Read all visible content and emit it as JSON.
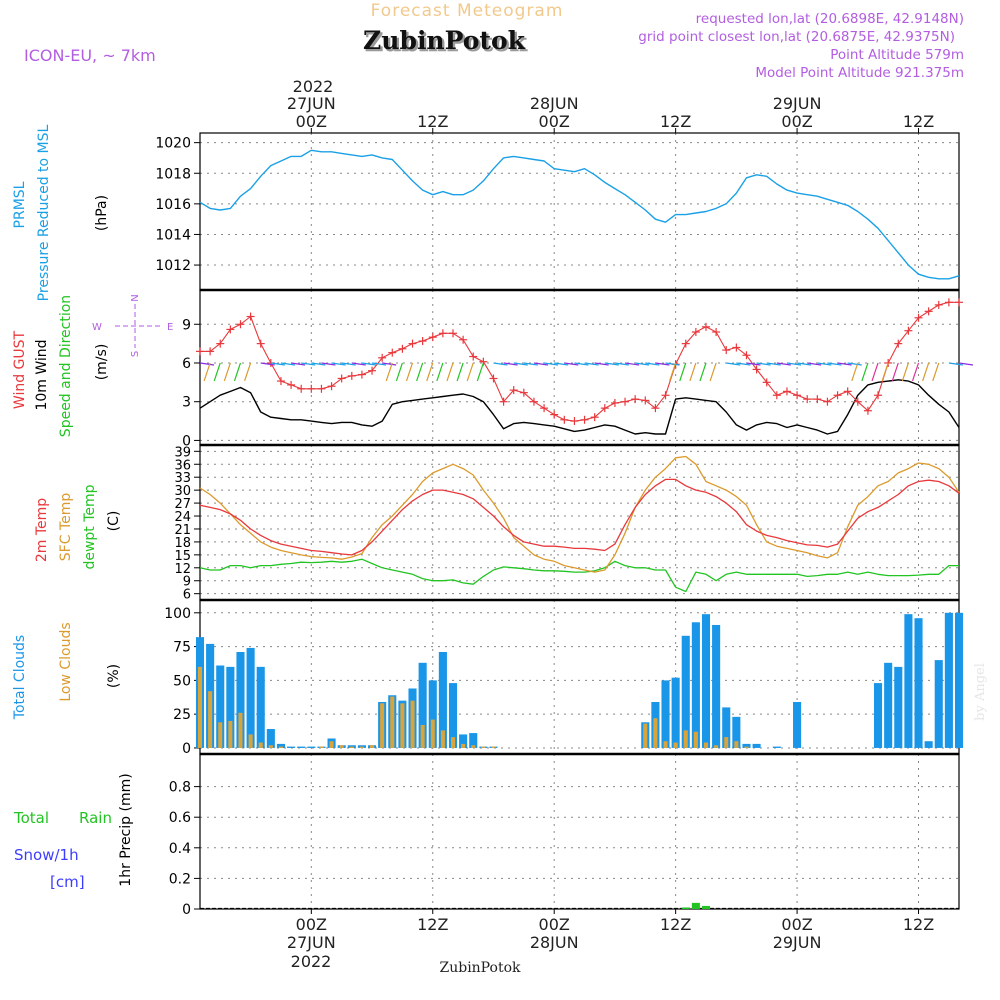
{
  "header": {
    "product": "Forecast Meteogram",
    "location": "ZubinPotok",
    "model": "ICON-EU, ~ 7km",
    "requested": "requested lon,lat (20.6898E, 42.9148N)",
    "closest": "grid point closest lon,lat (20.6875E, 42.9375N)",
    "point_alt": "Point Altitude 579m",
    "model_alt": "Model Point Altitude 921.375m",
    "footer_location": "ZubinPotok",
    "credit": "by Angel"
  },
  "time_axis": {
    "ticks": [
      "00Z",
      "12Z",
      "00Z",
      "12Z",
      "00Z",
      "12Z"
    ],
    "tick_hours": [
      24,
      36,
      48,
      60,
      72,
      84
    ],
    "date_labels": [
      "27JUN",
      "28JUN",
      "29JUN"
    ],
    "year_label": "2022",
    "start": "2022-06-26 13Z",
    "end": "2022-06-29 16Z"
  },
  "side_labels": {
    "p1": [
      "PRMSL",
      "Pressure Reduced to MSL",
      "(hPa)"
    ],
    "p2": [
      "Wind GUST",
      "10m Wind",
      "Speed and Direction",
      "(m/s)"
    ],
    "p3": [
      "2m Temp",
      "SFC Temp",
      "dewpt Temp",
      "(C)"
    ],
    "p4": [
      "Total Clouds",
      "Low Clouds",
      "(%)"
    ],
    "p5": [
      "Total",
      "Rain",
      "Snow/1h",
      "[cm]",
      "1hr Precip (mm)"
    ]
  },
  "compass": {
    "n": "N",
    "s": "S",
    "w": "W",
    "e": "E"
  },
  "colors": {
    "pressure": "#1aa0e6",
    "gust": "#e8383c",
    "wind": "#000000",
    "temp2m": "#e8383c",
    "sfc": "#dc9a2c",
    "dew": "#22c422",
    "total_clouds": "#1a96e8",
    "low_clouds": "#d9a43a",
    "rain": "#22c422",
    "snow": "#3d3dff",
    "purple": "#b35ee0"
  },
  "chart_data": [
    {
      "type": "line",
      "title": "PRMSL",
      "ylabel": "(hPa)",
      "ylim": [
        1010.5,
        1020.5
      ],
      "yticks": [
        1012,
        1014,
        1016,
        1018,
        1020
      ],
      "x": [
        13,
        14,
        15,
        16,
        17,
        18,
        19,
        20,
        21,
        22,
        23,
        24,
        25,
        26,
        27,
        28,
        29,
        30,
        31,
        32,
        33,
        34,
        35,
        36,
        37,
        38,
        39,
        40,
        41,
        42,
        43,
        44,
        45,
        46,
        47,
        48,
        49,
        50,
        51,
        52,
        53,
        54,
        55,
        56,
        57,
        58,
        59,
        60,
        61,
        62,
        63,
        64,
        65,
        66,
        67,
        68,
        69,
        70,
        71,
        72,
        73,
        74,
        75,
        76,
        77,
        78,
        79,
        80,
        81,
        82,
        83,
        84,
        85,
        86,
        87,
        88
      ],
      "series": [
        {
          "values": [
            1016.1,
            1015.7,
            1015.6,
            1015.7,
            1016.5,
            1017,
            1017.8,
            1018.5,
            1018.8,
            1019.1,
            1019.1,
            1019.5,
            1019.4,
            1019.4,
            1019.3,
            1019.2,
            1019.1,
            1019.2,
            1019,
            1018.9,
            1018.2,
            1017.5,
            1016.9,
            1016.6,
            1016.8,
            1016.6,
            1016.6,
            1016.9,
            1017.5,
            1018.3,
            1019,
            1019.1,
            1019,
            1018.9,
            1018.8,
            1018.3,
            1018.2,
            1018.1,
            1018.3,
            1017.9,
            1017.4,
            1017,
            1016.6,
            1016.1,
            1015.6,
            1015,
            1014.8,
            1015.3,
            1015.3,
            1015.4,
            1015.5,
            1015.7,
            1016,
            1016.7,
            1017.7,
            1017.9,
            1017.8,
            1017.3,
            1016.9,
            1016.7,
            1016.6,
            1016.5,
            1016.3,
            1016.1,
            1015.9,
            1015.5,
            1015,
            1014.4,
            1013.6,
            1012.8,
            1012,
            1011.4,
            1011.2,
            1011.1,
            1011.1,
            1011.3
          ]
        }
      ]
    },
    {
      "type": "line",
      "title": "Wind GUST / 10m Wind",
      "ylabel": "(m/s)",
      "ylim": [
        -0.2,
        11.5
      ],
      "yticks": [
        0,
        3,
        6,
        9
      ],
      "x": [
        13,
        14,
        15,
        16,
        17,
        18,
        19,
        20,
        21,
        22,
        23,
        24,
        25,
        26,
        27,
        28,
        29,
        30,
        31,
        32,
        33,
        34,
        35,
        36,
        37,
        38,
        39,
        40,
        41,
        42,
        43,
        44,
        45,
        46,
        47,
        48,
        49,
        50,
        51,
        52,
        53,
        54,
        55,
        56,
        57,
        58,
        59,
        60,
        61,
        62,
        63,
        64,
        65,
        66,
        67,
        68,
        69,
        70,
        71,
        72,
        73,
        74,
        75,
        76,
        77,
        78,
        79,
        80,
        81,
        82,
        83,
        84,
        85,
        86,
        87,
        88
      ],
      "series": [
        {
          "name": "Wind GUST",
          "values": [
            6.9,
            6.9,
            7.5,
            8.6,
            9.0,
            9.6,
            7.5,
            6.0,
            4.6,
            4.3,
            4.0,
            4.0,
            4.0,
            4.2,
            4.8,
            5.0,
            5.1,
            5.4,
            6.4,
            6.8,
            7.1,
            7.5,
            7.7,
            8.0,
            8.3,
            8.3,
            7.8,
            6.5,
            6.1,
            4.8,
            3.0,
            3.9,
            3.7,
            3.0,
            2.5,
            2.0,
            1.6,
            1.5,
            1.6,
            1.8,
            2.5,
            2.9,
            3.0,
            3.2,
            3.1,
            2.5,
            3.5,
            5.9,
            7.5,
            8.4,
            8.8,
            8.4,
            7.0,
            7.2,
            6.6,
            5.5,
            4.5,
            3.5,
            3.8,
            3.5,
            3.2,
            3.2,
            3.0,
            3.5,
            3.8,
            3.0,
            2.3,
            3.5,
            6.0,
            7.5,
            8.5,
            9.5,
            10.0,
            10.5,
            10.7,
            10.7
          ]
        },
        {
          "name": "10m Wind",
          "values": [
            2.5,
            3.0,
            3.5,
            3.8,
            4.1,
            3.7,
            2.2,
            1.8,
            1.7,
            1.6,
            1.6,
            1.5,
            1.4,
            1.3,
            1.4,
            1.4,
            1.2,
            1.1,
            1.5,
            2.8,
            3.0,
            3.1,
            3.2,
            3.3,
            3.4,
            3.5,
            3.6,
            3.4,
            3.0,
            2.0,
            0.9,
            1.3,
            1.4,
            1.3,
            1.2,
            1.1,
            0.9,
            0.7,
            0.8,
            1.0,
            1.2,
            1.1,
            0.8,
            0.5,
            0.6,
            0.5,
            0.5,
            3.2,
            3.3,
            3.2,
            3.1,
            3.0,
            2.2,
            1.2,
            0.8,
            1.2,
            1.4,
            1.3,
            1.0,
            1.2,
            1.0,
            0.8,
            0.5,
            0.7,
            2.0,
            3.5,
            4.3,
            4.5,
            4.6,
            4.7,
            4.6,
            4.3,
            3.5,
            2.8,
            2.2,
            1.0
          ]
        }
      ]
    },
    {
      "type": "line",
      "title": "Temperature",
      "ylabel": "(C)",
      "ylim": [
        5,
        40
      ],
      "yticks": [
        6,
        9,
        12,
        15,
        18,
        21,
        24,
        27,
        30,
        33,
        36,
        39
      ],
      "x": [
        13,
        14,
        15,
        16,
        17,
        18,
        19,
        20,
        21,
        22,
        23,
        24,
        25,
        26,
        27,
        28,
        29,
        30,
        31,
        32,
        33,
        34,
        35,
        36,
        37,
        38,
        39,
        40,
        41,
        42,
        43,
        44,
        45,
        46,
        47,
        48,
        49,
        50,
        51,
        52,
        53,
        54,
        55,
        56,
        57,
        58,
        59,
        60,
        61,
        62,
        63,
        64,
        65,
        66,
        67,
        68,
        69,
        70,
        71,
        72,
        73,
        74,
        75,
        76,
        77,
        78,
        79,
        80,
        81,
        82,
        83,
        84,
        85,
        86,
        87,
        88
      ],
      "series": [
        {
          "name": "2m Temp",
          "values": [
            26.5,
            26,
            25.5,
            24.5,
            23,
            21,
            19.5,
            18.3,
            17.5,
            17,
            16.5,
            16,
            15.8,
            15.5,
            15.2,
            15,
            16,
            18,
            20.5,
            23,
            25.5,
            27.5,
            29,
            30,
            30,
            29.5,
            29,
            28,
            26,
            24,
            21.5,
            19.5,
            18,
            17.5,
            17,
            17,
            16.8,
            16.5,
            16.5,
            16.3,
            16,
            17.5,
            22,
            26,
            29,
            31,
            32.5,
            32.5,
            31,
            30,
            29.5,
            28.5,
            27,
            25,
            22,
            20.5,
            19.5,
            19,
            18.3,
            17.8,
            17.3,
            17.2,
            16.8,
            17.5,
            20.5,
            23.5,
            25,
            26,
            27.5,
            29,
            31,
            32,
            32.3,
            32,
            31,
            29.3
          ]
        },
        {
          "name": "SFC Temp",
          "values": [
            30.5,
            29,
            27,
            24.5,
            22,
            20,
            18,
            16.8,
            16,
            15.5,
            15,
            14.6,
            14.4,
            14.3,
            14,
            14.5,
            15.3,
            19,
            22,
            24,
            26.5,
            29,
            32,
            34,
            35,
            36,
            35,
            33.5,
            30,
            27,
            23.5,
            19,
            17,
            15,
            14,
            13.5,
            12.5,
            12,
            11.5,
            11,
            11.5,
            15,
            20,
            26,
            30,
            33,
            35,
            37.5,
            37.8,
            36,
            32,
            31,
            30,
            28.5,
            26.5,
            22,
            18,
            17,
            16.5,
            16,
            15.5,
            14.8,
            14.3,
            15.5,
            21.5,
            26.5,
            28.5,
            31,
            32,
            34,
            35,
            36.3,
            36,
            35,
            33,
            29.5
          ]
        },
        {
          "name": "dewpt Temp",
          "values": [
            12,
            11.5,
            11.5,
            12.5,
            12.5,
            12,
            12.5,
            12.5,
            12.8,
            13,
            13.3,
            13.2,
            13.3,
            13.5,
            13.3,
            13.5,
            14,
            13,
            12,
            11.5,
            11,
            10.5,
            9.5,
            9,
            9,
            9.2,
            8.5,
            8.2,
            10,
            11.5,
            12.2,
            12,
            11.8,
            11.5,
            11.3,
            11.3,
            11.2,
            11,
            11,
            11.3,
            12,
            13.5,
            12.5,
            12,
            12,
            11.5,
            11.5,
            7.5,
            6.5,
            11,
            10.5,
            9,
            10.5,
            11,
            10.5,
            10.5,
            10.5,
            10.5,
            10.5,
            10.5,
            10,
            10.2,
            10.5,
            10.5,
            11,
            10.5,
            11,
            10.5,
            10.2,
            10.2,
            10.2,
            10.3,
            10.5,
            10.5,
            12.5,
            12.5
          ]
        }
      ]
    },
    {
      "type": "bar",
      "title": "Clouds",
      "ylabel": "(%)",
      "ylim": [
        -3,
        108
      ],
      "yticks": [
        0,
        25,
        50,
        75,
        100
      ],
      "x": [
        13,
        14,
        15,
        16,
        17,
        18,
        19,
        20,
        21,
        22,
        23,
        24,
        25,
        26,
        27,
        28,
        29,
        30,
        31,
        32,
        33,
        34,
        35,
        36,
        37,
        38,
        39,
        40,
        41,
        42,
        43,
        44,
        45,
        46,
        47,
        48,
        49,
        50,
        51,
        52,
        53,
        54,
        55,
        56,
        57,
        58,
        59,
        60,
        61,
        62,
        63,
        64,
        65,
        66,
        67,
        68,
        69,
        70,
        71,
        72,
        73,
        74,
        75,
        76,
        77,
        78,
        79,
        80,
        81,
        82,
        83,
        84,
        85,
        86,
        87,
        88
      ],
      "series": [
        {
          "name": "Total Clouds",
          "values": [
            82,
            77,
            61,
            60,
            71,
            74,
            60,
            14,
            3,
            1,
            1,
            1,
            1,
            7,
            2,
            2,
            2,
            2,
            34,
            39,
            35,
            44,
            63,
            50,
            71,
            48,
            10,
            11,
            1,
            1,
            0,
            0,
            0,
            0,
            0,
            0,
            0,
            0,
            0,
            0,
            0,
            0,
            0,
            0,
            19,
            34,
            50,
            52,
            83,
            93,
            99,
            91,
            30,
            23,
            3,
            3,
            0,
            1,
            0,
            34,
            0,
            0,
            0,
            0,
            0,
            0,
            0,
            48,
            63,
            60,
            99,
            96,
            5,
            65,
            100,
            100
          ]
        },
        {
          "name": "Low Clouds",
          "values": [
            60,
            42,
            19,
            20,
            26,
            10,
            4,
            2,
            1,
            0,
            0,
            0,
            1,
            5,
            2,
            1,
            1,
            2,
            33,
            38,
            33,
            35,
            17,
            21,
            13,
            8,
            3,
            2,
            1,
            1,
            0,
            0,
            0,
            0,
            0,
            0,
            0,
            0,
            0,
            0,
            0,
            0,
            0,
            0,
            18,
            22,
            5,
            4,
            13,
            12,
            4,
            2,
            8,
            5,
            1,
            0,
            0,
            0,
            0,
            0,
            0,
            0,
            0,
            0,
            0,
            0,
            0,
            0,
            0,
            0,
            0,
            0,
            0,
            0,
            0,
            0
          ]
        }
      ]
    },
    {
      "type": "bar",
      "title": "1hr Precip",
      "ylabel": "1hr Precip (mm)",
      "ylim": [
        0,
        1.0
      ],
      "yticks": [
        0,
        0.2,
        0.4,
        0.6,
        0.8
      ],
      "x": [
        61,
        62,
        63
      ],
      "series": [
        {
          "name": "Total Rain",
          "values": [
            0.01,
            0.04,
            0.02
          ]
        }
      ]
    }
  ]
}
